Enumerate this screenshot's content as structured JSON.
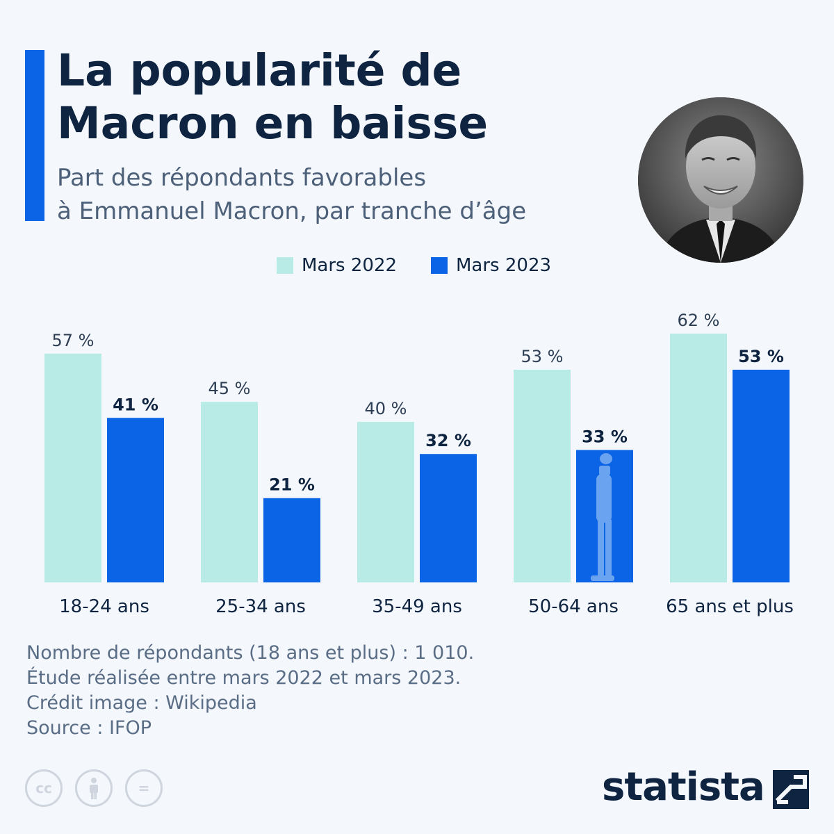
{
  "header": {
    "title": "La popularité de Macron en baisse",
    "subtitle_line1": "Part des répondants favorables",
    "subtitle_line2": "à Emmanuel Macron, par tranche d’âge"
  },
  "legend": [
    {
      "label": "Mars 2022",
      "color": "#b9ebe6"
    },
    {
      "label": "Mars 2023",
      "color": "#0b63e5"
    }
  ],
  "chart_data": {
    "type": "bar",
    "categories": [
      "18-24 ans",
      "25-34 ans",
      "35-49 ans",
      "50-64 ans",
      "65 ans et plus"
    ],
    "series": [
      {
        "name": "Mars 2022",
        "values": [
          57,
          45,
          40,
          53,
          62
        ],
        "labels": [
          "57 %",
          "45 %",
          "40 %",
          "53 %",
          "62 %"
        ],
        "color": "#b9ebe6"
      },
      {
        "name": "Mars 2023",
        "values": [
          41,
          21,
          32,
          33,
          53
        ],
        "labels": [
          "41 %",
          "21 %",
          "32 %",
          "33 %",
          "53 %"
        ],
        "color": "#0b63e5"
      }
    ],
    "title": "La popularité de Macron en baisse",
    "ylim": [
      0,
      62
    ],
    "grid": false,
    "legend_position": "top"
  },
  "footer": {
    "note_line1": "Nombre de répondants (18 ans et plus) : 1 010.",
    "note_line2": "Étude réalisée entre mars 2022 et mars 2023.",
    "credit": "Crédit image : Wikipedia",
    "source": "Source : IFOP",
    "brand": "statista",
    "license_icons": [
      "cc-icon",
      "attribution-icon",
      "no-derivatives-icon"
    ],
    "cc_text": "cc",
    "nd_text": "="
  }
}
